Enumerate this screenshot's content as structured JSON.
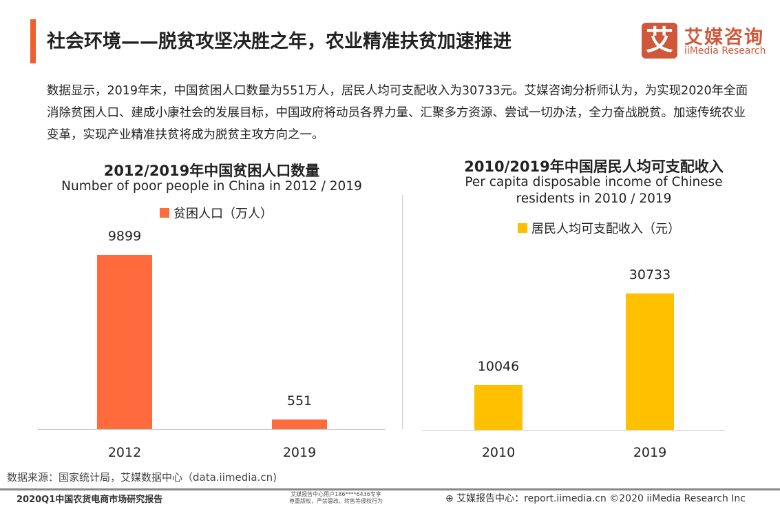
{
  "header": {
    "title": "社会环境——脱贫攻坚决胜之年，农业精准扶贫加速推进",
    "logo_mark": "艾",
    "logo_cn": "艾媒咨询",
    "logo_en": "iiMedia Research",
    "accent": "#f0602a"
  },
  "paragraph": "数据显示，2019年末，中国贫困人口数量为551万人，居民人均可支配收入为30733元。艾媒咨询分析师认为，为实现2020年全面消除贫困人口、建成小康社会的发展目标，中国政府将动员各界力量、汇聚多方资源、尝试一切办法，全力奋战脱贫。加速传统农业变革，实现产业精准扶贫将成为脱贫主攻方向之一。",
  "chart_data": [
    {
      "type": "bar",
      "title": "2012/2019年中国贫困人口数量",
      "subtitle": "Number of poor people in China in 2012 / 2019",
      "categories": [
        "2012",
        "2019"
      ],
      "series": [
        {
          "name": "贫困人口（万人）",
          "values": [
            9899,
            551
          ],
          "color": "#ff6b3d"
        }
      ],
      "legend": "top",
      "grid": false
    },
    {
      "type": "bar",
      "title": "2010/2019年中国居民人均可支配收入",
      "subtitle": "Per capita disposable income of Chinese residents in 2010 / 2019",
      "categories": [
        "2010",
        "2019"
      ],
      "series": [
        {
          "name": "居民人均可支配收入（元）",
          "values": [
            10046,
            30733
          ],
          "color": "#ffc000"
        }
      ],
      "legend": "top",
      "grid": false
    }
  ],
  "footer": {
    "source": "数据来源：国家统计局，艾媒数据中心（data.iimedia.cn)",
    "report": "2020Q1中国农货电商市场研究报告",
    "watermark_1": "艾媒报告中心用户186****6436专享",
    "watermark_2": "尊重版权，严禁篡改、转售等侵权行为",
    "site": "艾媒报告中心：report.iimedia.cn  ©2020  iiMedia Research  Inc"
  }
}
